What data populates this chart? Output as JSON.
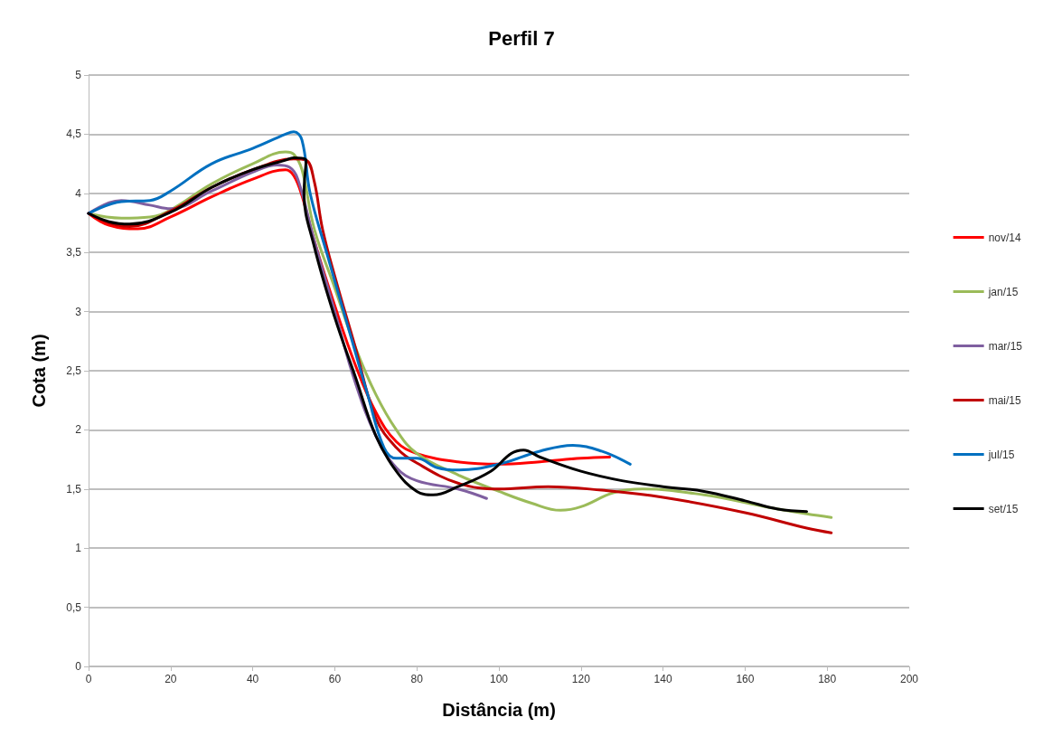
{
  "chart_data": {
    "type": "line",
    "title": "Perfil 7",
    "xlabel": "Distância (m)",
    "ylabel": "Cota (m)",
    "xlim": [
      0,
      200
    ],
    "xticks": [
      0,
      20,
      40,
      60,
      80,
      100,
      120,
      140,
      160,
      180,
      200
    ],
    "ylim": [
      0,
      5
    ],
    "yticks": [
      0,
      {
        "value": 0.5,
        "label": "0,5"
      },
      1,
      {
        "value": 1.5,
        "label": "1,5"
      },
      2,
      {
        "value": 2.5,
        "label": "2,5"
      },
      3,
      {
        "value": 3.5,
        "label": "3,5"
      },
      4,
      {
        "value": 4.5,
        "label": "4,5"
      },
      5
    ],
    "grid": "y",
    "legend": "right",
    "marker": "none",
    "line_style": "solid",
    "series": [
      {
        "name": "nov/14",
        "color": "#ff0000",
        "x": [
          0,
          5,
          12,
          20,
          30,
          40,
          48,
          50,
          52,
          55,
          60,
          65,
          70,
          75,
          80,
          90,
          100,
          110,
          120,
          127
        ],
        "values": [
          3.83,
          3.73,
          3.7,
          3.8,
          3.97,
          4.12,
          4.2,
          4.15,
          3.98,
          3.6,
          3.05,
          2.55,
          2.15,
          1.9,
          1.8,
          1.73,
          1.71,
          1.73,
          1.76,
          1.77
        ]
      },
      {
        "name": "jan/15",
        "color": "#9bbb59",
        "x": [
          0,
          8,
          15,
          20,
          30,
          40,
          48,
          50,
          52,
          55,
          60,
          65,
          70,
          75,
          80,
          90,
          100,
          108,
          115,
          120,
          128,
          135,
          150,
          165,
          175,
          181
        ],
        "values": [
          3.83,
          3.79,
          3.8,
          3.86,
          4.08,
          4.25,
          4.35,
          4.33,
          4.2,
          3.7,
          3.2,
          2.7,
          2.3,
          2.0,
          1.8,
          1.62,
          1.48,
          1.38,
          1.32,
          1.35,
          1.47,
          1.5,
          1.45,
          1.35,
          1.29,
          1.26
        ]
      },
      {
        "name": "mar/15",
        "color": "#7f5fa0",
        "x": [
          0,
          5,
          8,
          15,
          20,
          30,
          40,
          46,
          49,
          51,
          55,
          60,
          65,
          70,
          75,
          80,
          90,
          97
        ],
        "values": [
          3.83,
          3.92,
          3.94,
          3.9,
          3.87,
          4.02,
          4.18,
          4.24,
          4.22,
          4.12,
          3.6,
          3.0,
          2.4,
          1.95,
          1.68,
          1.57,
          1.5,
          1.42
        ]
      },
      {
        "name": "mai/15",
        "color": "#c00000",
        "x": [
          0,
          5,
          10,
          20,
          30,
          40,
          50,
          53,
          55,
          57,
          60,
          65,
          70,
          75,
          80,
          90,
          100,
          112,
          125,
          140,
          160,
          175,
          181
        ],
        "values": [
          3.83,
          3.75,
          3.72,
          3.85,
          4.05,
          4.2,
          4.29,
          4.28,
          4.1,
          3.7,
          3.3,
          2.7,
          2.1,
          1.85,
          1.72,
          1.55,
          1.5,
          1.52,
          1.49,
          1.43,
          1.3,
          1.17,
          1.13
        ]
      },
      {
        "name": "jul/15",
        "color": "#0070c0",
        "x": [
          0,
          8,
          15,
          20,
          30,
          40,
          48,
          50,
          52,
          54,
          58,
          63,
          68,
          72,
          75,
          80,
          85,
          90,
          100,
          110,
          118,
          125,
          132
        ],
        "values": [
          3.83,
          3.93,
          3.94,
          4.02,
          4.25,
          4.38,
          4.5,
          4.52,
          4.45,
          4.0,
          3.5,
          2.9,
          2.3,
          1.85,
          1.76,
          1.76,
          1.68,
          1.66,
          1.71,
          1.82,
          1.87,
          1.82,
          1.71
        ]
      },
      {
        "name": "set/15",
        "color": "#000000",
        "x": [
          0,
          5,
          10,
          20,
          30,
          40,
          48,
          50,
          53,
          52.5,
          55,
          60,
          65,
          70,
          75,
          80,
          84,
          90,
          98,
          103,
          106,
          110,
          120,
          130,
          140,
          150,
          160,
          168,
          175
        ],
        "values": [
          3.83,
          3.76,
          3.74,
          3.84,
          4.05,
          4.2,
          4.28,
          4.3,
          4.28,
          4.0,
          3.55,
          2.95,
          2.45,
          1.95,
          1.65,
          1.48,
          1.45,
          1.52,
          1.65,
          1.8,
          1.83,
          1.77,
          1.65,
          1.57,
          1.52,
          1.48,
          1.4,
          1.33,
          1.31
        ]
      }
    ]
  }
}
